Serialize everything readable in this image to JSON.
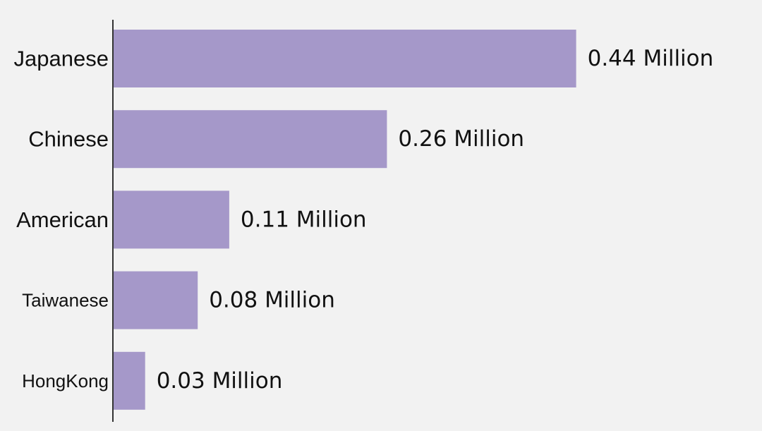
{
  "chart_data": {
    "type": "bar",
    "orientation": "horizontal",
    "categories": [
      "Japanese",
      "Chinese",
      "American",
      "Taiwanese",
      "HongKong"
    ],
    "values": [
      0.44,
      0.26,
      0.11,
      0.08,
      0.03
    ],
    "unit": "Million",
    "value_labels": [
      "0.44 Million",
      "0.26 Million",
      "0.11 Million",
      "0.08 Million",
      "0.03 Million"
    ],
    "title": "",
    "xlabel": "",
    "ylabel": "",
    "grid": false,
    "bar_color": "#a598c9",
    "axis_color": "#333333",
    "background": "#f2f2f2"
  }
}
